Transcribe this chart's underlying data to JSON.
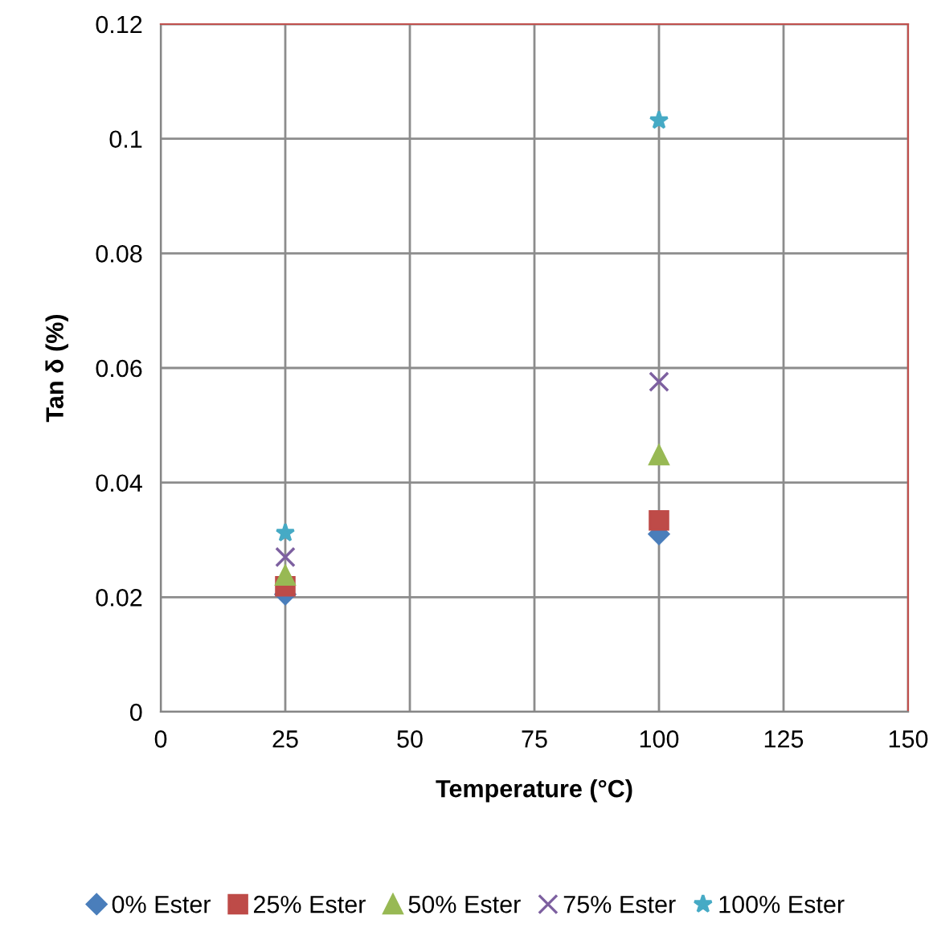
{
  "chart_data": {
    "type": "scatter",
    "xlabel": "Temperature (°C)",
    "ylabel": "Tan δ (%)",
    "xlim": [
      0,
      150
    ],
    "xticks": [
      0,
      25,
      50,
      75,
      100,
      125,
      150
    ],
    "ylim": [
      0,
      0.12
    ],
    "yticks": [
      {
        "value": 0,
        "label": "0"
      },
      {
        "value": 0.02,
        "label": "0.02"
      },
      {
        "value": 0.04,
        "label": "0.04"
      },
      {
        "value": 0.06,
        "label": "0.06"
      },
      {
        "value": 0.08,
        "label": "0.08"
      },
      {
        "value": 0.1,
        "label": "0.1"
      },
      {
        "value": 0.12,
        "label": "0.12"
      }
    ],
    "grid": true,
    "legend": "bottom",
    "x": [
      25,
      100
    ],
    "series": [
      {
        "name": "0% Ester",
        "color": "#4a7ebb",
        "marker": "diamond",
        "values": [
          0.0205,
          0.031
        ]
      },
      {
        "name": "25% Ester",
        "color": "#be4b48",
        "marker": "square",
        "values": [
          0.0219,
          0.0334
        ]
      },
      {
        "name": "50% Ester",
        "color": "#98b954",
        "marker": "triangle",
        "values": [
          0.0238,
          0.0448
        ]
      },
      {
        "name": "75% Ester",
        "color": "#7d60a0",
        "marker": "cross",
        "values": [
          0.027,
          0.0576
        ]
      },
      {
        "name": "100% Ester",
        "color": "#46aac5",
        "marker": "star",
        "values": [
          0.0312,
          0.1032
        ]
      }
    ]
  }
}
